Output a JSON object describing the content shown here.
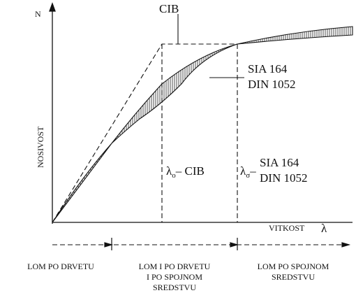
{
  "axes": {
    "y_label": "N",
    "y_title": "NOSIVOST",
    "x_title": "VITKOST",
    "x_label": "λ"
  },
  "curves": {
    "cib": "CIB",
    "sia_1": "SIA 164",
    "sia_2": "DIN 1052"
  },
  "limits": {
    "cib_symbol": "λ",
    "cib_sub": "o",
    "cib_text": "– CIB",
    "sia_symbol": "λ",
    "sia_sub": "σ",
    "sia_dash": "–",
    "sia_1": "SIA 164",
    "sia_2": "DIN 1052"
  },
  "zones": [
    {
      "lines": [
        "LOM PO DRVETU"
      ]
    },
    {
      "lines": [
        "LOM I PO DRVETU",
        "I PO SPOJNOM",
        "SREDSTVU"
      ]
    },
    {
      "lines": [
        "LOM PO SPOJNOM",
        "SREDSTVU"
      ]
    }
  ]
}
